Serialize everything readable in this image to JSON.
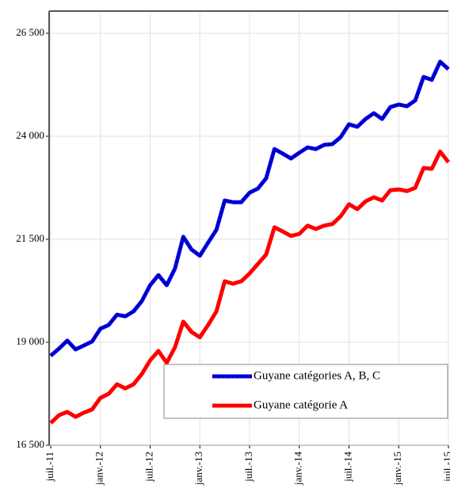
{
  "chart_data": {
    "type": "line",
    "categories": [
      "juil.-11",
      null,
      null,
      null,
      null,
      null,
      "janv.-12",
      null,
      null,
      null,
      null,
      null,
      "juil.-12",
      null,
      null,
      null,
      null,
      null,
      "janv.-13",
      null,
      null,
      null,
      null,
      null,
      "juil.-13",
      null,
      null,
      null,
      null,
      null,
      "janv.-14",
      null,
      null,
      null,
      null,
      null,
      "juil.-14",
      null,
      null,
      null,
      null,
      null,
      "janv.-15",
      null,
      null,
      null,
      null,
      null,
      "juil.-15"
    ],
    "series": [
      {
        "name": "Guyane catégories A, B, C",
        "color": "#0000ff",
        "values": [
          18673,
          18846,
          19040,
          18827,
          18920,
          19020,
          19330,
          19420,
          19670,
          19630,
          19750,
          20000,
          20385,
          20630,
          20385,
          20790,
          21560,
          21250,
          21100,
          21420,
          21730,
          22440,
          22400,
          22400,
          22630,
          22730,
          22980,
          23690,
          23580,
          23460,
          23600,
          23730,
          23690,
          23790,
          23810,
          23980,
          24290,
          24230,
          24420,
          24560,
          24420,
          24710,
          24770,
          24730,
          24870,
          25440,
          25370,
          25810,
          25630
        ]
      },
      {
        "name": "Guyane catégorie A",
        "color": "#ff0000",
        "values": [
          17040,
          17230,
          17310,
          17190,
          17290,
          17370,
          17650,
          17750,
          17980,
          17880,
          17980,
          18230,
          18560,
          18790,
          18500,
          18880,
          19500,
          19250,
          19120,
          19420,
          19750,
          20480,
          20420,
          20480,
          20670,
          20900,
          21130,
          21790,
          21690,
          21580,
          21630,
          21830,
          21750,
          21830,
          21870,
          22060,
          22350,
          22230,
          22420,
          22520,
          22440,
          22690,
          22710,
          22670,
          22750,
          23230,
          23210,
          23630,
          23370
        ]
      }
    ],
    "ylim": [
      16500,
      27000
    ],
    "yticks": [
      {
        "value": 16500,
        "label": "16 500"
      },
      {
        "value": 19000,
        "label": "19 000"
      },
      {
        "value": 21500,
        "label": "21 500"
      },
      {
        "value": 24000,
        "label": "24 000"
      },
      {
        "value": 26500,
        "label": "26 500"
      }
    ],
    "grid": true
  }
}
